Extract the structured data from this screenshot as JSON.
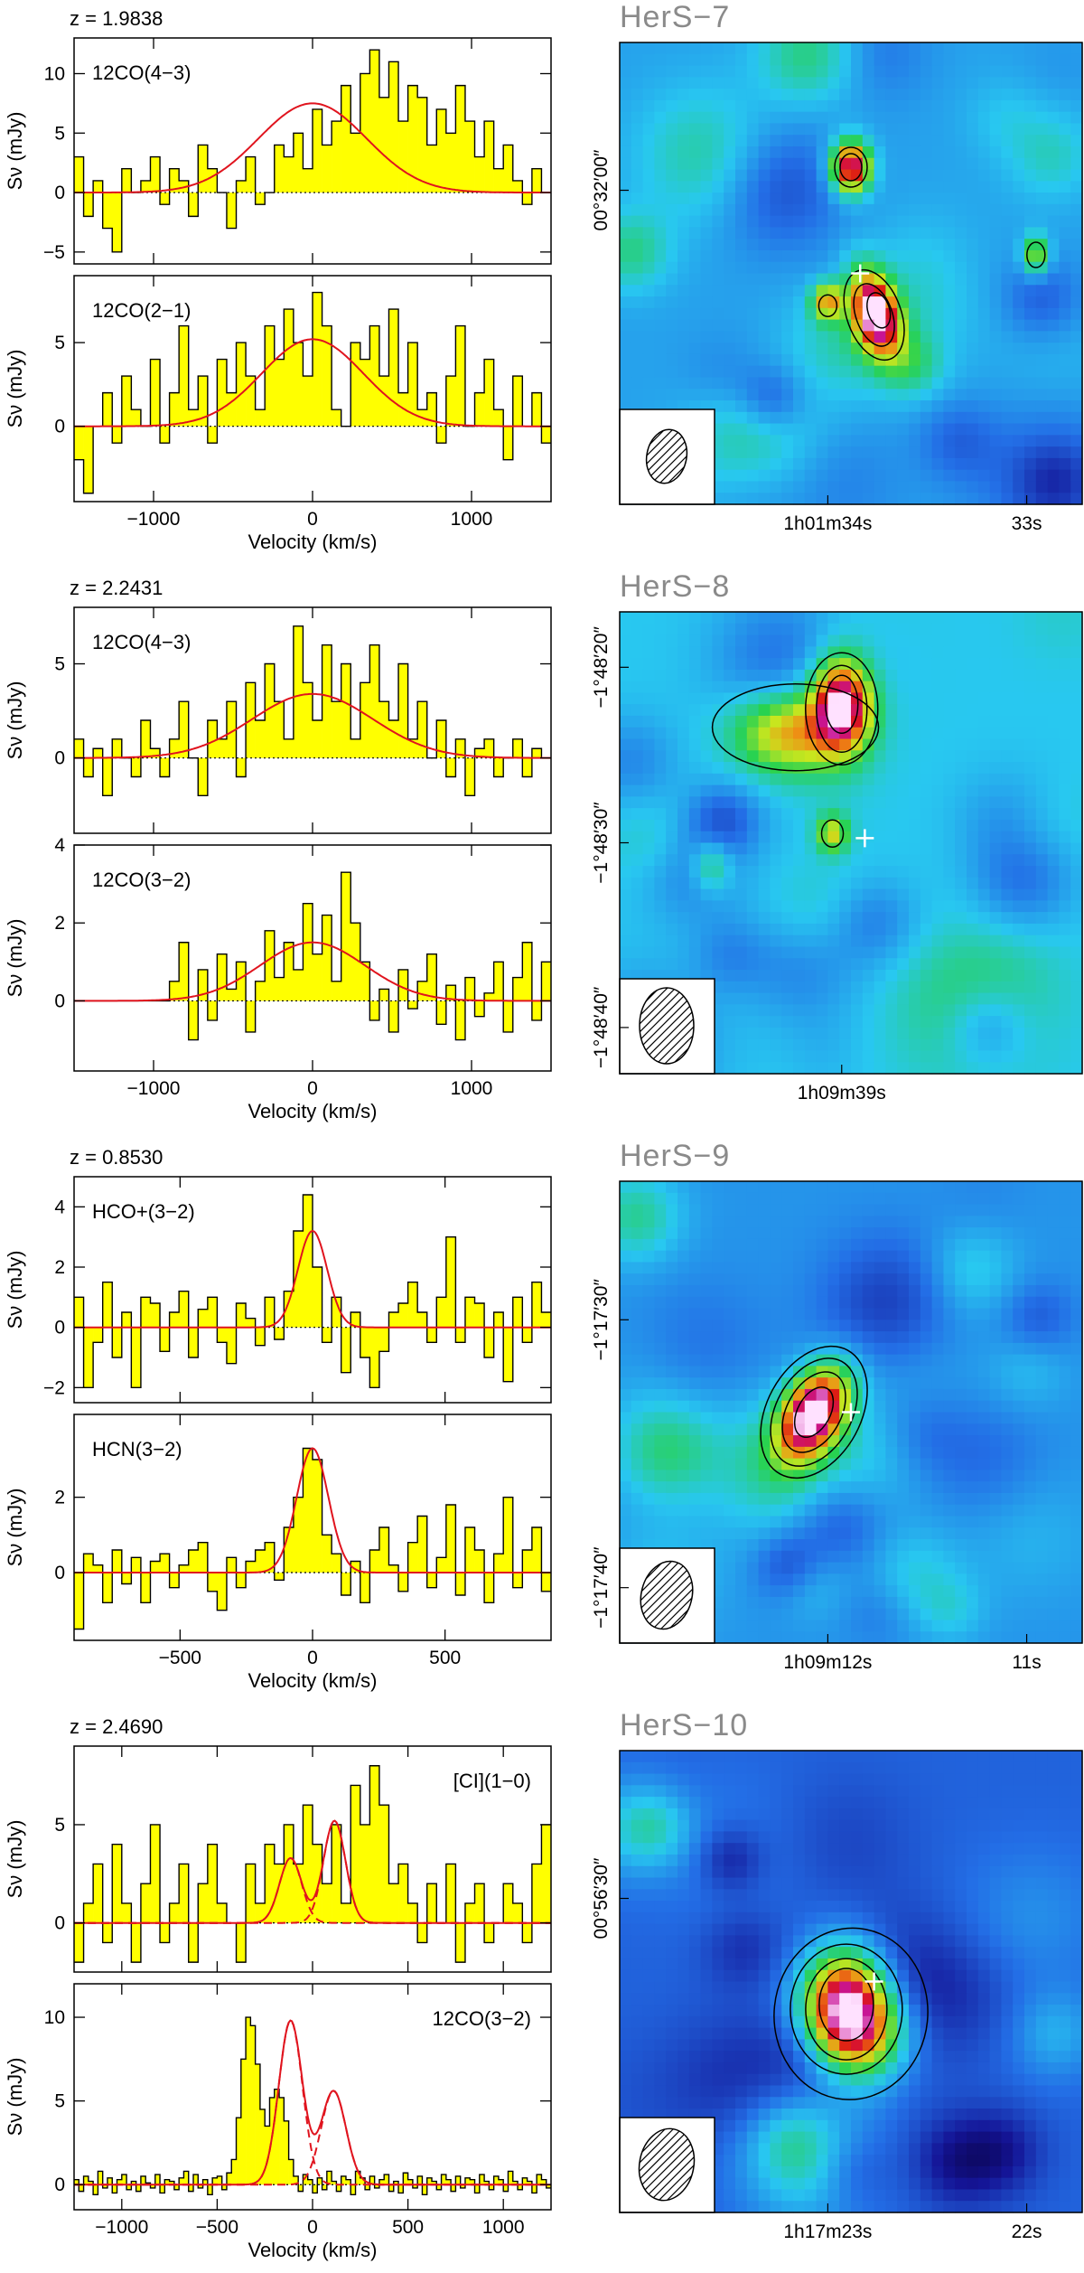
{
  "colors": {
    "spectrum_fill": "#ffff00",
    "fit_line": "#e0141e",
    "contour": "#000000",
    "marker": "#ffffff"
  },
  "icons": {
    "beam": "beam-ellipse-icon",
    "marker": "crosshair-icon"
  },
  "panels": [
    {
      "redshift": "z = 1.9838",
      "xlabel": "Velocity (km/s)",
      "ylabel": "Sν (mJy)",
      "map": {
        "title": "HerS−7",
        "colormap": "rainbow",
        "xticks": [
          "1h01m34s",
          "33s"
        ],
        "yticks": [
          "00°32′00″"
        ]
      },
      "chart_data": [
        {
          "type": "line",
          "title": "12CO(4−3)",
          "xlim": [
            -1500,
            1500
          ],
          "ylim": [
            -6,
            13
          ],
          "xticks": [
            -1000,
            0,
            1000
          ],
          "yticks": [
            -5,
            0,
            5,
            10
          ],
          "bin_width": 60,
          "spectrum": {
            "x0": -1500,
            "values": [
              3,
              -2,
              1,
              -3,
              -5,
              2,
              0,
              1,
              3,
              -1,
              2,
              1,
              -2,
              4,
              2,
              0,
              -3,
              1,
              3,
              -1,
              0,
              4,
              3,
              5,
              2,
              7,
              4,
              6,
              9,
              5,
              10,
              12,
              8,
              11,
              6,
              9,
              8,
              4,
              7,
              5,
              9,
              6,
              3,
              6,
              2,
              4,
              1,
              -1,
              2,
              0
            ]
          },
          "fits": [
            {
              "style": "solid",
              "amp": 7.5,
              "center": 0,
              "sigma": 340
            }
          ]
        },
        {
          "type": "line",
          "title": "12CO(2−1)",
          "xlim": [
            -1500,
            1500
          ],
          "ylim": [
            -4.5,
            9
          ],
          "xticks": [
            -1000,
            0,
            1000
          ],
          "yticks": [
            0,
            5
          ],
          "xlabel": "Velocity (km/s)",
          "bin_width": 60,
          "spectrum": {
            "x0": -1500,
            "values": [
              -2,
              -4,
              0,
              2,
              -1,
              3,
              1,
              0,
              4,
              -1,
              2,
              6,
              1,
              3,
              -1,
              4,
              2,
              5,
              3,
              1,
              6,
              4,
              7,
              5,
              3,
              8,
              6,
              1,
              0,
              5,
              4,
              6,
              3,
              7,
              2,
              5,
              1,
              2,
              -1,
              3,
              6,
              0,
              2,
              4,
              1,
              -2,
              3,
              0,
              2,
              -1
            ]
          },
          "fits": [
            {
              "style": "solid",
              "amp": 5.2,
              "center": 0,
              "sigma": 320
            }
          ]
        }
      ]
    },
    {
      "redshift": "z = 2.2431",
      "xlabel": "Velocity (km/s)",
      "ylabel": "Sν (mJy)",
      "map": {
        "title": "HerS−8",
        "colormap": "rainbow",
        "xticks": [
          "1h09m39s"
        ],
        "yticks": [
          "−1°48′20″",
          "−1°48′30″",
          "−1°48′40″"
        ]
      },
      "chart_data": [
        {
          "type": "line",
          "title": "12CO(4−3)",
          "xlim": [
            -1500,
            1500
          ],
          "ylim": [
            -4,
            8
          ],
          "xticks": [
            -1000,
            0,
            1000
          ],
          "yticks": [
            0,
            5
          ],
          "bin_width": 60,
          "spectrum": {
            "x0": -1500,
            "values": [
              1,
              -1,
              0.5,
              -2,
              1,
              0,
              -1,
              2,
              0.5,
              -1,
              1,
              3,
              0,
              -2,
              2,
              1,
              3,
              -1,
              4,
              2,
              5,
              3,
              1,
              7,
              4,
              2,
              6,
              3,
              5,
              1,
              4,
              6,
              3,
              2,
              5,
              1,
              3,
              0,
              2,
              -1,
              1,
              -2,
              0.5,
              1,
              -1,
              0,
              1,
              -1,
              0.5,
              0
            ]
          },
          "fits": [
            {
              "style": "solid",
              "amp": 3.4,
              "center": 0,
              "sigma": 380
            }
          ]
        },
        {
          "type": "line",
          "title": "12CO(3−2)",
          "xlim": [
            -1500,
            1500
          ],
          "ylim": [
            -1.8,
            4
          ],
          "xticks": [
            -1000,
            0,
            1000
          ],
          "yticks": [
            0,
            2,
            4
          ],
          "xlabel": "Velocity (km/s)",
          "bin_width": 60,
          "spectrum": {
            "x0": -1500,
            "values": [
              0,
              0,
              0,
              0,
              0,
              0,
              0,
              0,
              0,
              0,
              0.5,
              1.5,
              -1,
              0.8,
              -0.5,
              1.2,
              0.3,
              1.0,
              -0.8,
              0.5,
              1.8,
              0.6,
              1.5,
              0.8,
              2.5,
              1.2,
              2.2,
              0.5,
              3.3,
              2.0,
              1.0,
              -0.5,
              0.3,
              -0.8,
              0.8,
              -0.2,
              0.5,
              1.2,
              -0.6,
              0.4,
              -1.0,
              0.6,
              -0.4,
              0.2,
              1.0,
              -0.8,
              0.6,
              1.5,
              -0.5,
              1.0
            ]
          },
          "fits": [
            {
              "style": "solid",
              "amp": 1.5,
              "center": 0,
              "sigma": 330
            }
          ]
        }
      ]
    },
    {
      "redshift": "z = 0.8530",
      "xlabel": "Velocity (km/s)",
      "ylabel": "Sν (mJy)",
      "map": {
        "title": "HerS−9",
        "colormap": "rainbow",
        "xticks": [
          "1h09m12s",
          "11s"
        ],
        "yticks": [
          "−1°17′30″",
          "−1°17′40″"
        ]
      },
      "chart_data": [
        {
          "type": "line",
          "title": "HCO+(3−2)",
          "xlim": [
            -900,
            900
          ],
          "ylim": [
            -2.5,
            5
          ],
          "xticks": [
            -500,
            0,
            500
          ],
          "yticks": [
            -2,
            0,
            2,
            4
          ],
          "bin_width": 36,
          "spectrum": {
            "x0": -900,
            "values": [
              1,
              -2,
              -0.5,
              1.5,
              -1,
              0.5,
              -2,
              1,
              0.8,
              -0.8,
              0.5,
              1.2,
              -1,
              0.6,
              1.0,
              -0.5,
              -1.2,
              0.8,
              0.3,
              -0.6,
              1.0,
              -0.4,
              1.2,
              3.2,
              4.4,
              2.0,
              -0.5,
              1.0,
              -1.5,
              0.5,
              -1.0,
              -2.0,
              -0.8,
              0.5,
              0.8,
              1.5,
              0.5,
              -0.5,
              1.0,
              3.0,
              -0.5,
              1.0,
              0.8,
              -1.0,
              0.5,
              -1.8,
              1.0,
              -0.5,
              1.5,
              0.5
            ]
          },
          "fits": [
            {
              "style": "solid",
              "amp": 3.2,
              "center": 0,
              "sigma": 55
            }
          ]
        },
        {
          "type": "line",
          "title": "HCN(3−2)",
          "xlim": [
            -900,
            900
          ],
          "ylim": [
            -1.8,
            4.2
          ],
          "xticks": [
            -500,
            0,
            500
          ],
          "yticks": [
            0,
            2
          ],
          "xlabel": "Velocity (km/s)",
          "bin_width": 36,
          "spectrum": {
            "x0": -900,
            "values": [
              -1.5,
              0.5,
              0.2,
              -0.8,
              0.6,
              -0.3,
              0.4,
              -0.8,
              0.3,
              0.5,
              -0.4,
              0.2,
              0.6,
              0.8,
              -0.5,
              -1.0,
              0.4,
              -0.4,
              0.3,
              0.6,
              0.8,
              -0.2,
              1.2,
              2.0,
              3.3,
              3.0,
              1.0,
              0.5,
              -0.6,
              0.3,
              -0.8,
              0.6,
              1.2,
              0.2,
              -0.5,
              0.8,
              1.5,
              -0.4,
              0.4,
              1.8,
              -0.6,
              1.2,
              0.6,
              -0.8,
              0.5,
              2.0,
              -0.4,
              0.6,
              1.2,
              -0.5
            ]
          },
          "fits": [
            {
              "style": "solid",
              "amp": 3.3,
              "center": 0,
              "sigma": 60
            }
          ]
        }
      ]
    },
    {
      "redshift": "z = 2.4690",
      "xlabel": "Velocity (km/s)",
      "ylabel": "Sν (mJy)",
      "map": {
        "title": "HerS−10",
        "colormap": "rainbow",
        "xticks": [
          "1h17m23s",
          "22s"
        ],
        "yticks": [
          "00°56′30″"
        ]
      },
      "chart_data": [
        {
          "type": "line",
          "title": "[CI](1−0)",
          "xlim": [
            -1250,
            1250
          ],
          "ylim": [
            -2.5,
            9
          ],
          "xticks": [
            -1000,
            -500,
            0,
            500,
            1000
          ],
          "yticks": [
            0,
            5
          ],
          "bin_width": 50,
          "spectrum": {
            "x0": -1250,
            "values": [
              -2,
              1,
              3,
              -1,
              4,
              1,
              -2,
              2,
              5,
              -1,
              1,
              3,
              -2,
              2,
              4,
              1,
              0,
              -2,
              3,
              1,
              4,
              3,
              5,
              3,
              6,
              4,
              2,
              5,
              1,
              7,
              5,
              8,
              6,
              2,
              3,
              1,
              -1,
              2,
              0,
              3,
              -2,
              1,
              2,
              -1,
              0,
              2,
              1,
              -1,
              3,
              5
            ]
          },
          "fits": [
            {
              "style": "solid",
              "amp": 3.3,
              "center": -115,
              "sigma": 58,
              "amp2": 5.2,
              "center2": 115,
              "sigma2": 58
            },
            {
              "style": "dashed",
              "amp": 3.3,
              "center": -115,
              "sigma": 58
            },
            {
              "style": "dashed",
              "amp": 5.2,
              "center": 115,
              "sigma": 58
            }
          ]
        },
        {
          "type": "line",
          "title": "12CO(3−2)",
          "xlim": [
            -1250,
            1250
          ],
          "ylim": [
            -1.5,
            12
          ],
          "xticks": [
            -1000,
            -500,
            0,
            500,
            1000
          ],
          "yticks": [
            0,
            5,
            10
          ],
          "xlabel": "Velocity (km/s)",
          "bin_width": 25,
          "spectrum": {
            "x0": -1250,
            "values": [
              0.3,
              -0.4,
              0.5,
              0.2,
              -0.6,
              0.8,
              -0.2,
              0.4,
              -0.5,
              0.3,
              0.6,
              -0.3,
              0.2,
              -0.4,
              0.5,
              0.1,
              -0.2,
              0.6,
              -0.5,
              0.3,
              0.2,
              -0.3,
              0.4,
              0.8,
              -0.4,
              0.6,
              -0.2,
              0.3,
              -0.6,
              0.4,
              0.5,
              -0.3,
              0.7,
              1.5,
              4.0,
              7.5,
              10.0,
              9.5,
              7.2,
              4.5,
              3.5,
              5.2,
              5.7,
              5.2,
              3.8,
              1.5,
              0.5,
              -0.4,
              0.6,
              0.3,
              -0.5,
              0.4,
              -0.3,
              0.8,
              0.2,
              -0.4,
              0.5,
              0.3,
              -0.6,
              0.8,
              0.4,
              -0.3,
              0.5,
              -0.2,
              0.3,
              0.6,
              -0.4,
              0.2,
              -0.5,
              0.7,
              0.3,
              -0.2,
              0.5,
              -0.6,
              0.4,
              0.2,
              -0.3,
              0.6,
              0.3,
              -0.4,
              0.5,
              -0.2,
              0.4,
              0.3,
              -0.5,
              0.6,
              0.2,
              -0.3,
              0.5,
              0.3,
              -0.4,
              0.8,
              0.2,
              -0.3,
              0.4,
              0.2,
              -0.5,
              0.6,
              0.3,
              -0.2
            ]
          },
          "fits": [
            {
              "style": "solid",
              "amp": 9.8,
              "center": -115,
              "sigma": 62,
              "amp2": 5.6,
              "center2": 110,
              "sigma2": 65
            },
            {
              "style": "dashed",
              "amp": 9.8,
              "center": -115,
              "sigma": 62
            },
            {
              "style": "dashed",
              "amp": 5.6,
              "center": 110,
              "sigma": 65
            }
          ]
        }
      ]
    }
  ]
}
